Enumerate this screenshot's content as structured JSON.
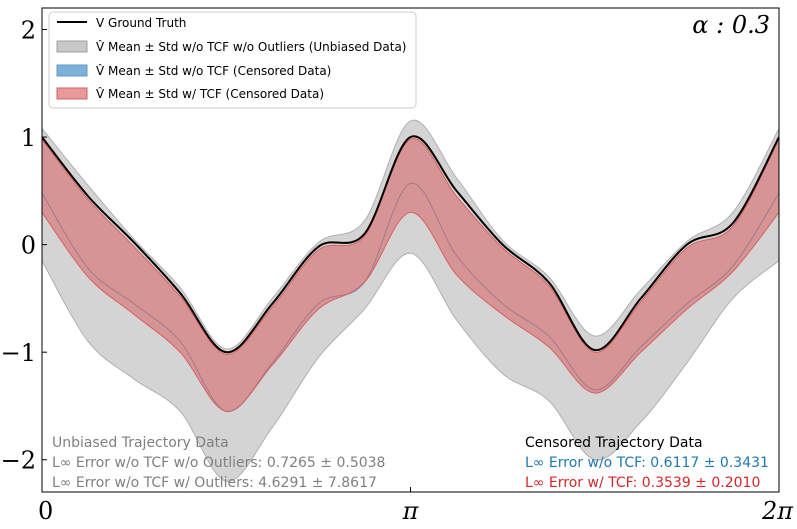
{
  "chart_data": {
    "type": "area",
    "title": "α : 0.3",
    "xlabel": "",
    "ylabel": "",
    "xlim": [
      0,
      6.2832
    ],
    "ylim": [
      -2.3,
      2.2
    ],
    "x_ticks": [
      {
        "value": 0,
        "label": "0"
      },
      {
        "value": 3.1416,
        "label": "π"
      },
      {
        "value": 6.2832,
        "label": "2π"
      }
    ],
    "y_ticks": [
      {
        "value": -2,
        "label": "−2"
      },
      {
        "value": -1,
        "label": "−1"
      },
      {
        "value": 0,
        "label": "0"
      },
      {
        "value": 1,
        "label": "1"
      },
      {
        "value": 2,
        "label": "2"
      }
    ],
    "x": [
      0,
      0.393,
      0.785,
      1.178,
      1.571,
      1.963,
      2.356,
      2.749,
      3.142,
      3.534,
      3.927,
      4.32,
      4.712,
      5.105,
      5.498,
      5.89,
      6.283
    ],
    "series": [
      {
        "name": "V Ground Truth",
        "kind": "line",
        "color": "#000000",
        "values": [
          1.0,
          0.45,
          0.02,
          -0.45,
          -1.0,
          -0.55,
          -0.02,
          0.1,
          1.0,
          0.5,
          0.0,
          -0.35,
          -0.98,
          -0.5,
          0.0,
          0.2,
          1.0
        ]
      },
      {
        "name": "V̂ Mean ± Std w/o TCF w/o Outliers (Unbiased Data)",
        "kind": "band",
        "color": "#b0b0b0",
        "upper": [
          1.08,
          0.55,
          0.05,
          -0.4,
          -0.97,
          -0.5,
          0.02,
          0.22,
          1.15,
          0.62,
          0.04,
          -0.3,
          -0.85,
          -0.42,
          0.03,
          0.3,
          1.08
        ],
        "lower": [
          -0.15,
          -0.9,
          -1.25,
          -1.55,
          -2.2,
          -1.7,
          -1.05,
          -0.6,
          -0.08,
          -0.7,
          -1.2,
          -1.45,
          -2.0,
          -1.65,
          -1.1,
          -0.5,
          -0.15
        ]
      },
      {
        "name": "V̂ Mean ± Std w/o TCF (Censored Data)",
        "kind": "band",
        "color": "#5b9bc8",
        "upper": [
          0.48,
          -0.22,
          -0.55,
          -0.9,
          -1.55,
          -1.1,
          -0.55,
          -0.35,
          0.57,
          -0.1,
          -0.55,
          -0.85,
          -1.35,
          -0.95,
          -0.55,
          -0.2,
          0.48
        ],
        "lower": [
          0.48,
          -0.22,
          -0.55,
          -0.9,
          -1.55,
          -1.1,
          -0.55,
          -0.35,
          0.57,
          -0.1,
          -0.55,
          -0.85,
          -1.35,
          -0.95,
          -0.55,
          -0.2,
          0.48
        ]
      },
      {
        "name": "V̂ Mean ± Std w/ TCF (Censored Data)",
        "kind": "band",
        "color": "#d95f5f",
        "upper": [
          0.98,
          0.42,
          -0.02,
          -0.48,
          -1.02,
          -0.58,
          -0.05,
          0.08,
          0.98,
          0.45,
          -0.03,
          -0.38,
          -1.0,
          -0.53,
          -0.03,
          0.17,
          0.98
        ],
        "lower": [
          0.3,
          -0.3,
          -0.65,
          -1.0,
          -1.55,
          -1.12,
          -0.6,
          -0.35,
          0.3,
          -0.28,
          -0.65,
          -0.95,
          -1.38,
          -1.0,
          -0.6,
          -0.25,
          0.3
        ]
      }
    ],
    "legend": {
      "position": "top-left",
      "entries": [
        {
          "label": "V Ground Truth",
          "style": "line",
          "color": "#000000"
        },
        {
          "label": "V̂ Mean ± Std w/o TCF w/o Outliers (Unbiased Data)",
          "style": "patch",
          "color": "#c8c8c8"
        },
        {
          "label": "V̂ Mean ± Std w/o TCF (Censored Data)",
          "style": "patch",
          "color": "#7fb0d8"
        },
        {
          "label": "V̂ Mean ± Std w/ TCF (Censored Data)",
          "style": "patch",
          "color": "#e89a9a"
        }
      ]
    },
    "annotations": {
      "unbiased": {
        "title": "Unbiased Trajectory Data",
        "line1": "L∞ Error w/o TCF w/o Outliers: 0.7265 ± 0.5038",
        "line2": "L∞ Error w/o TCF w/ Outliers: 4.6291 ± 7.8617",
        "color": "#808080"
      },
      "censored": {
        "title": "Censored Trajectory Data",
        "line1": "L∞ Error w/o TCF: 0.6117 ± 0.3431",
        "line2": "L∞ Error w/ TCF: 0.3539 ± 0.2010",
        "title_color": "#000000",
        "line1_color": "#1f77b4",
        "line2_color": "#d62728"
      }
    }
  }
}
